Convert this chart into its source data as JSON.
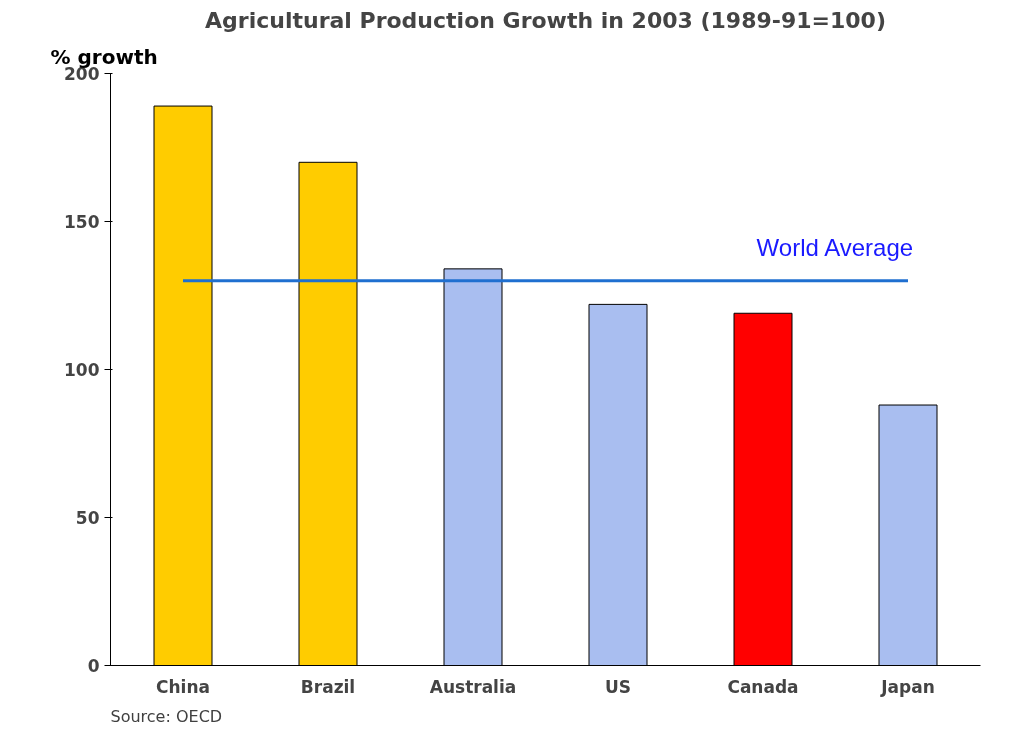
{
  "chart_data": {
    "type": "bar",
    "title": "Agricultural Production Growth in 2003 (1989-91=100)",
    "ylabel": "% growth",
    "categories": [
      "China",
      "Brazil",
      "Australia",
      "US",
      "Canada",
      "Japan"
    ],
    "values": [
      189,
      170,
      134,
      122,
      119,
      88
    ],
    "colors": [
      "#ffcc00",
      "#ffcc00",
      "#a9bef0",
      "#a9bef0",
      "#ff0000",
      "#a9bef0"
    ],
    "ylim": [
      0,
      200
    ],
    "yticks": [
      0,
      50,
      100,
      150,
      200
    ],
    "grid": false,
    "ref_lines": [
      {
        "axis": "y",
        "value": 130,
        "label": "World Average",
        "color": "#1f6fd0"
      }
    ],
    "annotations": [
      "Source: OECD"
    ]
  }
}
